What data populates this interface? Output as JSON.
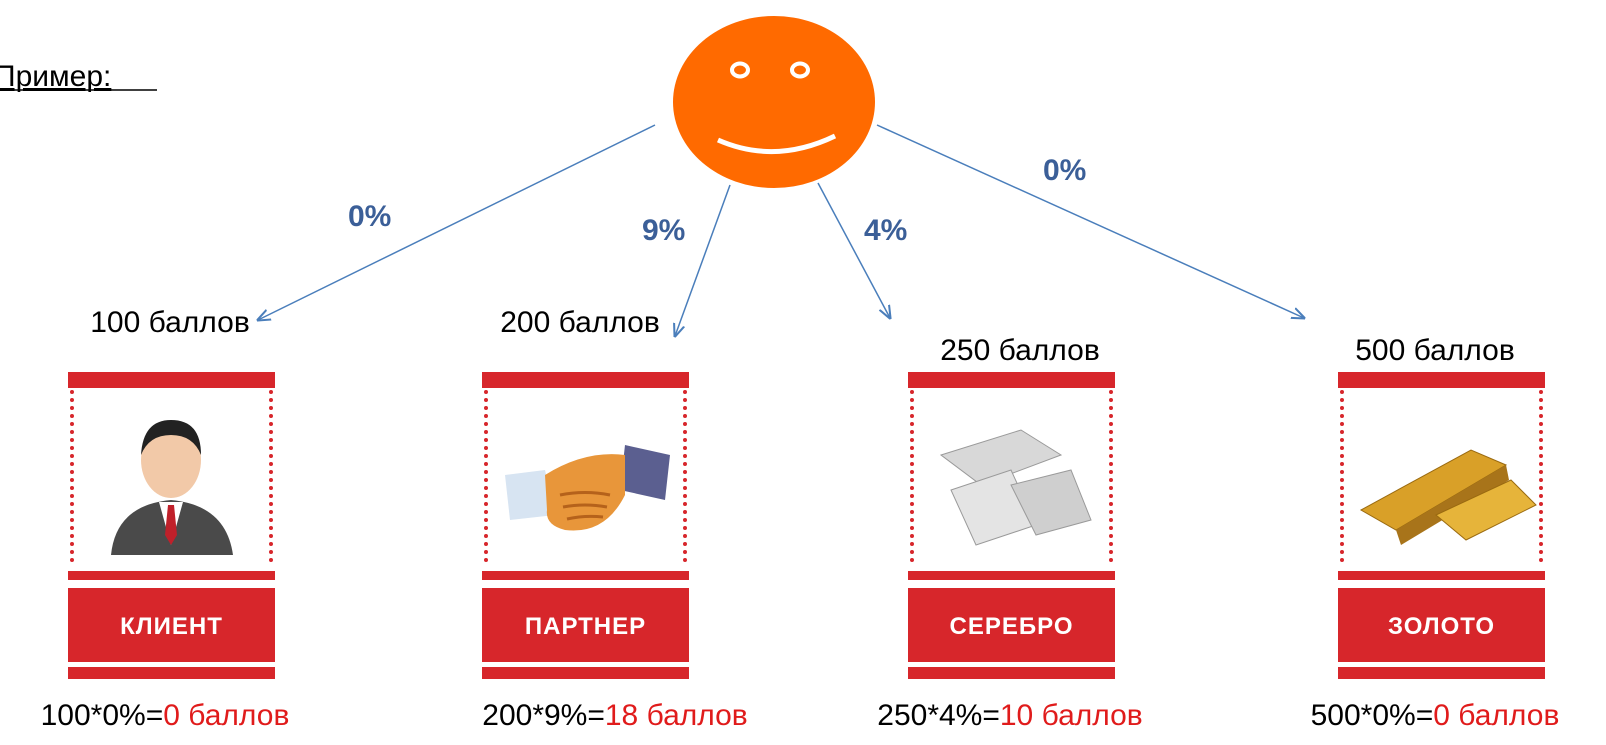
{
  "title": "Пример:",
  "percentages": [
    "0%",
    "9%",
    "4%",
    "0%"
  ],
  "cards": [
    {
      "points": "100 баллов",
      "label": "КЛИЕНТ",
      "formula": "100*0%=",
      "result": "0 баллов"
    },
    {
      "points": "200 баллов",
      "label": "ПАРТНЕР",
      "formula": "200*9%=",
      "result": "18 баллов"
    },
    {
      "points": "250 баллов",
      "label": "СЕРЕБРО",
      "formula": "250*4%=",
      "result": "10 баллов"
    },
    {
      "points": "500 баллов",
      "label": "ЗОЛОТО",
      "formula": "500*0%=",
      "result": "0 баллов"
    }
  ]
}
